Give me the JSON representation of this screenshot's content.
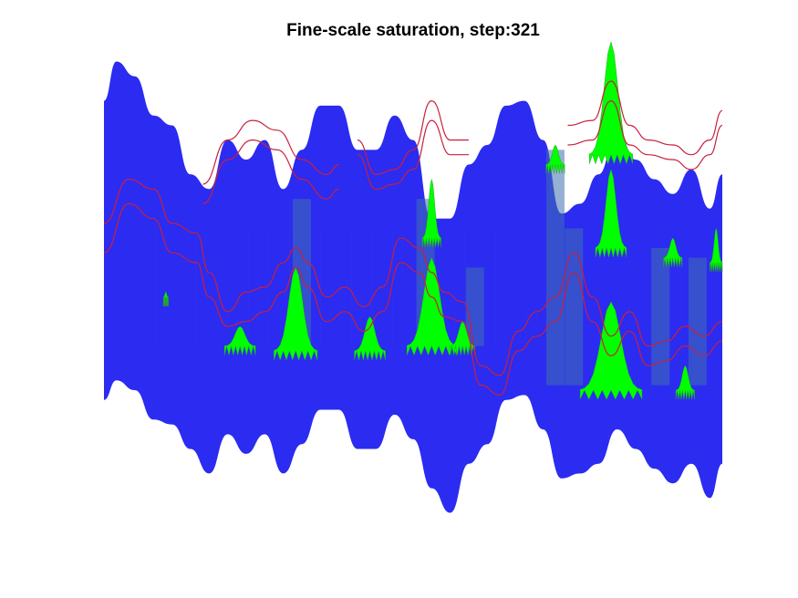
{
  "figure": {
    "title": "Fine-scale saturation, step:321"
  },
  "chart_data": {
    "type": "heatmap",
    "title": "Fine-scale saturation, step:321",
    "xlabel": "",
    "ylabel": "",
    "axes_visible": false,
    "grid": false,
    "colors": {
      "background_field": "#2b2bf2",
      "saturated": "#00ff00",
      "transition": "#3f6fb0",
      "contour": "#c8203c"
    },
    "domain": {
      "x": [
        0,
        1
      ],
      "upper_boundary": {
        "x": [
          0.0,
          0.02,
          0.05,
          0.08,
          0.11,
          0.14,
          0.17,
          0.2,
          0.23,
          0.26,
          0.29,
          0.32,
          0.35,
          0.38,
          0.41,
          0.44,
          0.47,
          0.5,
          0.53,
          0.56,
          0.59,
          0.62,
          0.65,
          0.68,
          0.71,
          0.74,
          0.77,
          0.8,
          0.83,
          0.86,
          0.89,
          0.92,
          0.95,
          0.98,
          1.0
        ],
        "y": [
          0.12,
          0.04,
          0.07,
          0.15,
          0.17,
          0.27,
          0.3,
          0.2,
          0.24,
          0.2,
          0.3,
          0.22,
          0.13,
          0.13,
          0.22,
          0.22,
          0.15,
          0.2,
          0.36,
          0.36,
          0.25,
          0.21,
          0.13,
          0.12,
          0.2,
          0.35,
          0.33,
          0.27,
          0.18,
          0.24,
          0.28,
          0.31,
          0.26,
          0.34,
          0.27
        ]
      },
      "lower_boundary": {
        "x": [
          0.0,
          0.02,
          0.05,
          0.08,
          0.11,
          0.14,
          0.17,
          0.2,
          0.23,
          0.26,
          0.29,
          0.32,
          0.35,
          0.38,
          0.41,
          0.44,
          0.47,
          0.5,
          0.53,
          0.56,
          0.59,
          0.62,
          0.65,
          0.68,
          0.71,
          0.74,
          0.77,
          0.8,
          0.83,
          0.86,
          0.89,
          0.92,
          0.95,
          0.98,
          1.0
        ],
        "y": [
          0.73,
          0.69,
          0.71,
          0.77,
          0.78,
          0.83,
          0.88,
          0.8,
          0.84,
          0.8,
          0.88,
          0.82,
          0.75,
          0.75,
          0.83,
          0.83,
          0.76,
          0.81,
          0.91,
          0.96,
          0.86,
          0.82,
          0.73,
          0.72,
          0.79,
          0.89,
          0.88,
          0.86,
          0.79,
          0.83,
          0.87,
          0.9,
          0.86,
          0.93,
          0.86
        ]
      }
    },
    "saturated_plumes": [
      {
        "x_center": 0.31,
        "width": 0.07,
        "base": 0.63,
        "peak": 0.46
      },
      {
        "x_center": 0.43,
        "width": 0.05,
        "base": 0.63,
        "peak": 0.56
      },
      {
        "x_center": 0.53,
        "width": 0.08,
        "base": 0.62,
        "peak": 0.44
      },
      {
        "x_center": 0.58,
        "width": 0.04,
        "base": 0.62,
        "peak": 0.57
      },
      {
        "x_center": 0.22,
        "width": 0.05,
        "base": 0.62,
        "peak": 0.58
      },
      {
        "x_center": 0.53,
        "width": 0.03,
        "base": 0.4,
        "peak": 0.28
      },
      {
        "x_center": 0.82,
        "width": 0.1,
        "base": 0.71,
        "peak": 0.53
      },
      {
        "x_center": 0.94,
        "width": 0.03,
        "base": 0.71,
        "peak": 0.66
      },
      {
        "x_center": 0.82,
        "width": 0.05,
        "base": 0.42,
        "peak": 0.26
      },
      {
        "x_center": 0.82,
        "width": 0.07,
        "base": 0.23,
        "peak": 0.0
      },
      {
        "x_center": 0.73,
        "width": 0.03,
        "base": 0.25,
        "peak": 0.21
      },
      {
        "x_center": 0.92,
        "width": 0.03,
        "base": 0.44,
        "peak": 0.4
      },
      {
        "x_center": 0.99,
        "width": 0.02,
        "base": 0.45,
        "peak": 0.38
      },
      {
        "x_center": 0.1,
        "width": 0.008,
        "base": 0.52,
        "peak": 0.51
      }
    ],
    "transition_columns": [
      {
        "x": 0.32,
        "top": 0.32,
        "bottom": 0.62
      },
      {
        "x": 0.52,
        "top": 0.32,
        "bottom": 0.62
      },
      {
        "x": 0.6,
        "top": 0.46,
        "bottom": 0.62
      },
      {
        "x": 0.73,
        "top": 0.22,
        "bottom": 0.7
      },
      {
        "x": 0.76,
        "top": 0.38,
        "bottom": 0.7
      },
      {
        "x": 0.9,
        "top": 0.42,
        "bottom": 0.7
      },
      {
        "x": 0.96,
        "top": 0.44,
        "bottom": 0.7
      }
    ],
    "contours": [
      {
        "x": [
          0.0,
          0.04,
          0.08,
          0.11,
          0.15,
          0.17,
          0.2,
          0.23,
          0.26,
          0.29,
          0.31,
          0.33,
          0.36,
          0.39,
          0.42,
          0.45,
          0.48,
          0.51,
          0.53,
          0.55,
          0.58,
          0.61,
          0.64,
          0.67,
          0.7,
          0.73,
          0.76,
          0.79,
          0.82,
          0.85,
          0.88,
          0.91,
          0.94,
          0.97,
          1.0
        ],
        "y": [
          0.43,
          0.33,
          0.36,
          0.43,
          0.45,
          0.52,
          0.58,
          0.57,
          0.55,
          0.51,
          0.46,
          0.5,
          0.57,
          0.55,
          0.59,
          0.55,
          0.45,
          0.47,
          0.52,
          0.56,
          0.57,
          0.7,
          0.72,
          0.63,
          0.6,
          0.57,
          0.47,
          0.57,
          0.64,
          0.59,
          0.66,
          0.65,
          0.62,
          0.64,
          0.61
        ]
      },
      {
        "x": [
          0.0,
          0.04,
          0.08,
          0.11,
          0.15,
          0.17,
          0.2,
          0.23,
          0.26,
          0.29,
          0.31,
          0.33,
          0.36,
          0.39,
          0.42,
          0.45,
          0.48,
          0.51,
          0.53,
          0.55,
          0.58,
          0.61,
          0.64,
          0.67,
          0.7,
          0.73,
          0.76,
          0.79,
          0.82,
          0.85,
          0.88,
          0.91,
          0.94,
          0.97,
          1.0
        ],
        "y": [
          0.37,
          0.28,
          0.3,
          0.37,
          0.39,
          0.47,
          0.55,
          0.51,
          0.5,
          0.45,
          0.42,
          0.45,
          0.52,
          0.5,
          0.54,
          0.5,
          0.4,
          0.42,
          0.47,
          0.51,
          0.53,
          0.66,
          0.68,
          0.59,
          0.55,
          0.52,
          0.43,
          0.52,
          0.6,
          0.55,
          0.62,
          0.61,
          0.58,
          0.6,
          0.57
        ]
      },
      {
        "x": [
          0.16,
          0.2,
          0.24,
          0.28,
          0.32,
          0.36,
          0.38
        ],
        "y": [
          0.33,
          0.24,
          0.2,
          0.22,
          0.28,
          0.32,
          0.3
        ]
      },
      {
        "x": [
          0.16,
          0.2,
          0.24,
          0.28,
          0.32,
          0.36,
          0.38
        ],
        "y": [
          0.29,
          0.2,
          0.16,
          0.18,
          0.24,
          0.27,
          0.25
        ]
      },
      {
        "x": [
          0.41,
          0.44,
          0.47,
          0.5,
          0.53,
          0.56,
          0.59
        ],
        "y": [
          0.23,
          0.3,
          0.29,
          0.26,
          0.16,
          0.23,
          0.23
        ]
      },
      {
        "x": [
          0.41,
          0.44,
          0.47,
          0.5,
          0.53,
          0.56,
          0.59
        ],
        "y": [
          0.2,
          0.27,
          0.26,
          0.22,
          0.12,
          0.2,
          0.2
        ]
      },
      {
        "x": [
          0.75,
          0.79,
          0.82,
          0.85,
          0.88,
          0.92,
          0.95,
          0.98,
          1.0
        ],
        "y": [
          0.21,
          0.2,
          0.12,
          0.21,
          0.23,
          0.24,
          0.26,
          0.23,
          0.17
        ]
      },
      {
        "x": [
          0.75,
          0.79,
          0.82,
          0.85,
          0.88,
          0.92,
          0.95,
          0.98,
          1.0
        ],
        "y": [
          0.17,
          0.16,
          0.08,
          0.17,
          0.2,
          0.21,
          0.23,
          0.2,
          0.14
        ]
      }
    ]
  }
}
